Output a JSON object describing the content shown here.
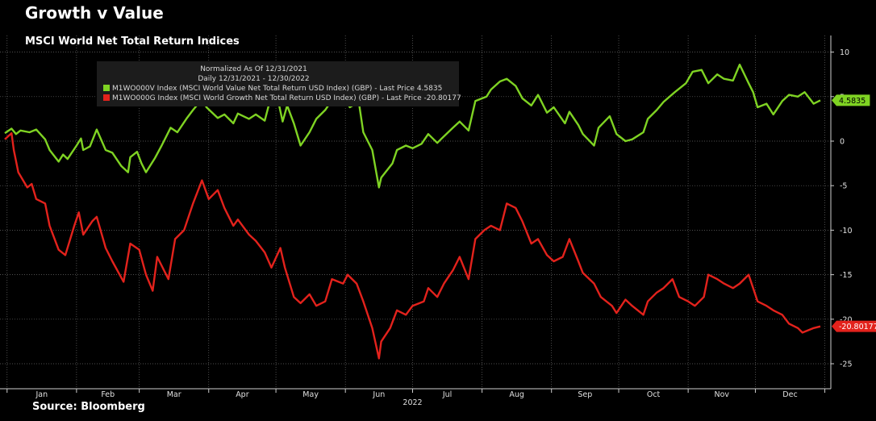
{
  "header": {
    "title": "Growth v Value",
    "subtitle": "MSCI World Net Total Return Indices"
  },
  "footer": {
    "source": "Source: Bloomberg"
  },
  "legend": {
    "line1": "Normalized As Of 12/31/2021",
    "line2": "Daily 12/31/2021 - 12/30/2022",
    "placement": "top-left",
    "background": "#1c1c1c"
  },
  "chart_data": {
    "type": "line",
    "xlabel": "2022",
    "ylabel": "",
    "x_ticks": [
      "Jan",
      "Feb",
      "Mar",
      "Apr",
      "May",
      "Jun",
      "Jul",
      "Aug",
      "Sep",
      "Oct",
      "Nov",
      "Dec"
    ],
    "y_ticks": [
      10,
      5,
      0,
      -5,
      -10,
      -15,
      -20,
      -25
    ],
    "ylim": [
      -27.5,
      12
    ],
    "y_axis_position": "right",
    "grid": true,
    "series": [
      {
        "name": "M1WO000V Index (MSCI World Value Net Total Return USD Index) (GBP) - Last Price  4.5835",
        "color": "#7fd323",
        "last_label": "4.5835",
        "points": [
          [
            "2021-12-31",
            0.9
          ],
          [
            "2022-01-03",
            1.4
          ],
          [
            "2022-01-05",
            0.8
          ],
          [
            "2022-01-07",
            1.2
          ],
          [
            "2022-01-11",
            1.0
          ],
          [
            "2022-01-14",
            1.3
          ],
          [
            "2022-01-18",
            0.2
          ],
          [
            "2022-01-20",
            -1.0
          ],
          [
            "2022-01-24",
            -2.3
          ],
          [
            "2022-01-26",
            -1.5
          ],
          [
            "2022-01-28",
            -2.0
          ],
          [
            "2022-02-01",
            -0.5
          ],
          [
            "2022-02-03",
            0.3
          ],
          [
            "2022-02-04",
            -1.0
          ],
          [
            "2022-02-07",
            -0.6
          ],
          [
            "2022-02-10",
            1.3
          ],
          [
            "2022-02-14",
            -1.0
          ],
          [
            "2022-02-17",
            -1.3
          ],
          [
            "2022-02-21",
            -2.8
          ],
          [
            "2022-02-24",
            -3.5
          ],
          [
            "2022-02-25",
            -1.8
          ],
          [
            "2022-02-28",
            -1.2
          ],
          [
            "2022-03-02",
            -2.5
          ],
          [
            "2022-03-04",
            -3.5
          ],
          [
            "2022-03-08",
            -1.9
          ],
          [
            "2022-03-11",
            -0.5
          ],
          [
            "2022-03-15",
            1.5
          ],
          [
            "2022-03-18",
            1.0
          ],
          [
            "2022-03-22",
            2.5
          ],
          [
            "2022-03-25",
            3.5
          ],
          [
            "2022-03-29",
            4.7
          ],
          [
            "2022-03-31",
            3.8
          ],
          [
            "2022-04-05",
            2.6
          ],
          [
            "2022-04-08",
            3.0
          ],
          [
            "2022-04-12",
            2.0
          ],
          [
            "2022-04-14",
            3.1
          ],
          [
            "2022-04-19",
            2.5
          ],
          [
            "2022-04-22",
            3.0
          ],
          [
            "2022-04-26",
            2.3
          ],
          [
            "2022-04-28",
            4.2
          ],
          [
            "2022-05-02",
            4.5
          ],
          [
            "2022-05-04",
            2.2
          ],
          [
            "2022-05-06",
            4.0
          ],
          [
            "2022-05-09",
            2.0
          ],
          [
            "2022-05-12",
            -0.5
          ],
          [
            "2022-05-16",
            1.0
          ],
          [
            "2022-05-19",
            2.5
          ],
          [
            "2022-05-23",
            3.5
          ],
          [
            "2022-05-26",
            4.6
          ],
          [
            "2022-05-30",
            4.0
          ],
          [
            "2022-06-01",
            4.6
          ],
          [
            "2022-06-03",
            3.8
          ],
          [
            "2022-06-07",
            4.4
          ],
          [
            "2022-06-09",
            1.0
          ],
          [
            "2022-06-13",
            -1.0
          ],
          [
            "2022-06-16",
            -5.2
          ],
          [
            "2022-06-17",
            -4.1
          ],
          [
            "2022-06-22",
            -2.5
          ],
          [
            "2022-06-24",
            -1.0
          ],
          [
            "2022-06-28",
            -0.5
          ],
          [
            "2022-07-01",
            -0.8
          ],
          [
            "2022-07-05",
            -0.3
          ],
          [
            "2022-07-08",
            0.8
          ],
          [
            "2022-07-12",
            -0.2
          ],
          [
            "2022-07-14",
            0.3
          ],
          [
            "2022-07-19",
            1.5
          ],
          [
            "2022-07-22",
            2.2
          ],
          [
            "2022-07-26",
            1.2
          ],
          [
            "2022-07-29",
            4.5
          ],
          [
            "2022-08-03",
            5.0
          ],
          [
            "2022-08-05",
            5.8
          ],
          [
            "2022-08-09",
            6.7
          ],
          [
            "2022-08-12",
            7.0
          ],
          [
            "2022-08-16",
            6.2
          ],
          [
            "2022-08-19",
            4.8
          ],
          [
            "2022-08-23",
            4.0
          ],
          [
            "2022-08-26",
            5.2
          ],
          [
            "2022-08-30",
            3.2
          ],
          [
            "2022-09-02",
            3.8
          ],
          [
            "2022-09-07",
            2.0
          ],
          [
            "2022-09-09",
            3.3
          ],
          [
            "2022-09-13",
            1.8
          ],
          [
            "2022-09-15",
            0.8
          ],
          [
            "2022-09-20",
            -0.5
          ],
          [
            "2022-09-22",
            1.5
          ],
          [
            "2022-09-27",
            2.8
          ],
          [
            "2022-09-30",
            0.8
          ],
          [
            "2022-10-04",
            0.0
          ],
          [
            "2022-10-07",
            0.2
          ],
          [
            "2022-10-12",
            1.0
          ],
          [
            "2022-10-14",
            2.5
          ],
          [
            "2022-10-18",
            3.5
          ],
          [
            "2022-10-21",
            4.4
          ],
          [
            "2022-10-26",
            5.5
          ],
          [
            "2022-10-31",
            6.5
          ],
          [
            "2022-11-03",
            7.8
          ],
          [
            "2022-11-07",
            8.0
          ],
          [
            "2022-11-10",
            6.5
          ],
          [
            "2022-11-14",
            7.5
          ],
          [
            "2022-11-17",
            7.0
          ],
          [
            "2022-11-21",
            6.8
          ],
          [
            "2022-11-24",
            8.6
          ],
          [
            "2022-11-28",
            6.5
          ],
          [
            "2022-11-30",
            5.5
          ],
          [
            "2022-12-02",
            3.8
          ],
          [
            "2022-12-06",
            4.2
          ],
          [
            "2022-12-09",
            3.0
          ],
          [
            "2022-12-13",
            4.5
          ],
          [
            "2022-12-16",
            5.2
          ],
          [
            "2022-12-20",
            5.0
          ],
          [
            "2022-12-23",
            5.5
          ],
          [
            "2022-12-27",
            4.2
          ],
          [
            "2022-12-30",
            4.5835
          ]
        ]
      },
      {
        "name": "M1WO000G Index (MSCI World Growth Net Total Return USD Index) (GBP) - Last Price -20.80177",
        "color": "#e3221c",
        "last_label": "-20.80177",
        "points": [
          [
            "2021-12-31",
            0.2
          ],
          [
            "2022-01-03",
            0.9
          ],
          [
            "2022-01-04",
            -1.0
          ],
          [
            "2022-01-06",
            -3.5
          ],
          [
            "2022-01-10",
            -5.2
          ],
          [
            "2022-01-12",
            -4.8
          ],
          [
            "2022-01-14",
            -6.5
          ],
          [
            "2022-01-18",
            -7.0
          ],
          [
            "2022-01-20",
            -9.5
          ],
          [
            "2022-01-24",
            -12.2
          ],
          [
            "2022-01-27",
            -12.8
          ],
          [
            "2022-01-31",
            -9.5
          ],
          [
            "2022-02-02",
            -8.0
          ],
          [
            "2022-02-04",
            -10.5
          ],
          [
            "2022-02-08",
            -9.0
          ],
          [
            "2022-02-10",
            -8.5
          ],
          [
            "2022-02-14",
            -12.0
          ],
          [
            "2022-02-17",
            -13.5
          ],
          [
            "2022-02-22",
            -15.8
          ],
          [
            "2022-02-25",
            -11.5
          ],
          [
            "2022-03-01",
            -12.2
          ],
          [
            "2022-03-04",
            -15.0
          ],
          [
            "2022-03-07",
            -16.8
          ],
          [
            "2022-03-09",
            -13.0
          ],
          [
            "2022-03-14",
            -15.5
          ],
          [
            "2022-03-17",
            -11.0
          ],
          [
            "2022-03-21",
            -10.0
          ],
          [
            "2022-03-25",
            -7.0
          ],
          [
            "2022-03-29",
            -4.4
          ],
          [
            "2022-04-01",
            -6.5
          ],
          [
            "2022-04-05",
            -5.5
          ],
          [
            "2022-04-08",
            -7.5
          ],
          [
            "2022-04-12",
            -9.5
          ],
          [
            "2022-04-14",
            -8.8
          ],
          [
            "2022-04-19",
            -10.5
          ],
          [
            "2022-04-22",
            -11.2
          ],
          [
            "2022-04-26",
            -12.5
          ],
          [
            "2022-04-29",
            -14.2
          ],
          [
            "2022-05-03",
            -12.0
          ],
          [
            "2022-05-05",
            -14.2
          ],
          [
            "2022-05-09",
            -17.5
          ],
          [
            "2022-05-12",
            -18.2
          ],
          [
            "2022-05-16",
            -17.2
          ],
          [
            "2022-05-19",
            -18.5
          ],
          [
            "2022-05-23",
            -18.0
          ],
          [
            "2022-05-26",
            -15.5
          ],
          [
            "2022-05-31",
            -16.0
          ],
          [
            "2022-06-02",
            -15.0
          ],
          [
            "2022-06-06",
            -16.0
          ],
          [
            "2022-06-09",
            -18.0
          ],
          [
            "2022-06-13",
            -21.0
          ],
          [
            "2022-06-16",
            -24.4
          ],
          [
            "2022-06-17",
            -22.5
          ],
          [
            "2022-06-21",
            -21.0
          ],
          [
            "2022-06-24",
            -19.0
          ],
          [
            "2022-06-28",
            -19.5
          ],
          [
            "2022-07-01",
            -18.5
          ],
          [
            "2022-07-06",
            -18.0
          ],
          [
            "2022-07-08",
            -16.5
          ],
          [
            "2022-07-12",
            -17.5
          ],
          [
            "2022-07-15",
            -16.0
          ],
          [
            "2022-07-19",
            -14.5
          ],
          [
            "2022-07-22",
            -13.0
          ],
          [
            "2022-07-26",
            -15.5
          ],
          [
            "2022-07-29",
            -11.0
          ],
          [
            "2022-08-02",
            -10.0
          ],
          [
            "2022-08-05",
            -9.5
          ],
          [
            "2022-08-09",
            -10.0
          ],
          [
            "2022-08-12",
            -7.0
          ],
          [
            "2022-08-16",
            -7.5
          ],
          [
            "2022-08-19",
            -9.0
          ],
          [
            "2022-08-23",
            -11.5
          ],
          [
            "2022-08-26",
            -11.0
          ],
          [
            "2022-08-30",
            -12.8
          ],
          [
            "2022-09-02",
            -13.5
          ],
          [
            "2022-09-06",
            -13.0
          ],
          [
            "2022-09-09",
            -11.0
          ],
          [
            "2022-09-13",
            -13.5
          ],
          [
            "2022-09-15",
            -14.8
          ],
          [
            "2022-09-20",
            -16.0
          ],
          [
            "2022-09-23",
            -17.5
          ],
          [
            "2022-09-28",
            -18.5
          ],
          [
            "2022-09-30",
            -19.3
          ],
          [
            "2022-10-04",
            -17.8
          ],
          [
            "2022-10-07",
            -18.5
          ],
          [
            "2022-10-12",
            -19.5
          ],
          [
            "2022-10-14",
            -18.0
          ],
          [
            "2022-10-18",
            -17.0
          ],
          [
            "2022-10-21",
            -16.5
          ],
          [
            "2022-10-25",
            -15.5
          ],
          [
            "2022-10-28",
            -17.5
          ],
          [
            "2022-11-01",
            -18.0
          ],
          [
            "2022-11-04",
            -18.5
          ],
          [
            "2022-11-08",
            -17.5
          ],
          [
            "2022-11-10",
            -15.0
          ],
          [
            "2022-11-14",
            -15.5
          ],
          [
            "2022-11-17",
            -16.0
          ],
          [
            "2022-11-21",
            -16.5
          ],
          [
            "2022-11-24",
            -16.0
          ],
          [
            "2022-11-28",
            -15.0
          ],
          [
            "2022-11-30",
            -16.5
          ],
          [
            "2022-12-02",
            -18.0
          ],
          [
            "2022-12-06",
            -18.5
          ],
          [
            "2022-12-09",
            -19.0
          ],
          [
            "2022-12-13",
            -19.5
          ],
          [
            "2022-12-16",
            -20.5
          ],
          [
            "2022-12-20",
            -21.0
          ],
          [
            "2022-12-22",
            -21.5
          ],
          [
            "2022-12-27",
            -21.0
          ],
          [
            "2022-12-30",
            -20.80177
          ]
        ]
      }
    ]
  }
}
